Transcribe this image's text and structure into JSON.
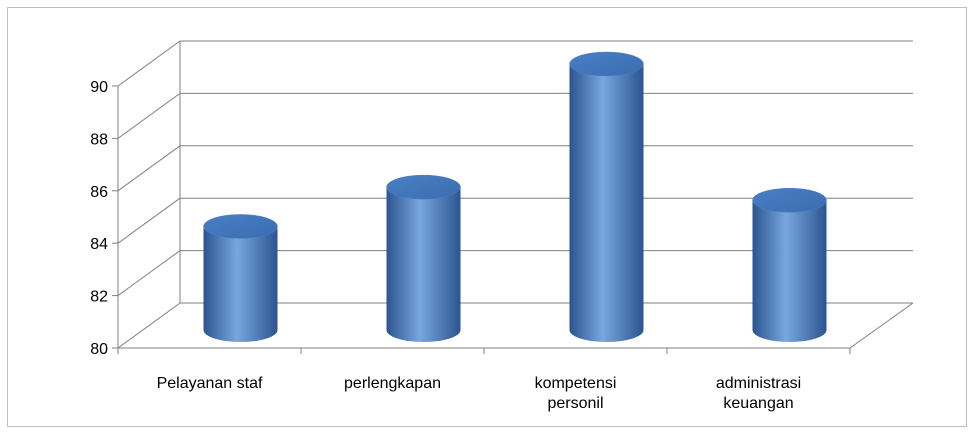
{
  "chart_data": {
    "type": "bar",
    "style": "3d-cylinder",
    "categories": [
      [
        "Pelayanan staf"
      ],
      [
        "perlengkapan"
      ],
      [
        "kompetensi",
        "personil"
      ],
      [
        "administrasi",
        "keuangan"
      ]
    ],
    "values": [
      83.8,
      85.3,
      90.0,
      84.8
    ],
    "ylim": [
      80,
      90
    ],
    "yticks": [
      "80",
      "82",
      "84",
      "86",
      "88",
      "90"
    ],
    "grid": true,
    "legend": "none",
    "colors": {
      "bar_dark": "#2a5590",
      "bar_mid": "#4a7fc4",
      "bar_light": "#7aa6de",
      "bar_top": "#3a6db0",
      "grid": "#7f7f7f",
      "axis": "#808080"
    }
  }
}
